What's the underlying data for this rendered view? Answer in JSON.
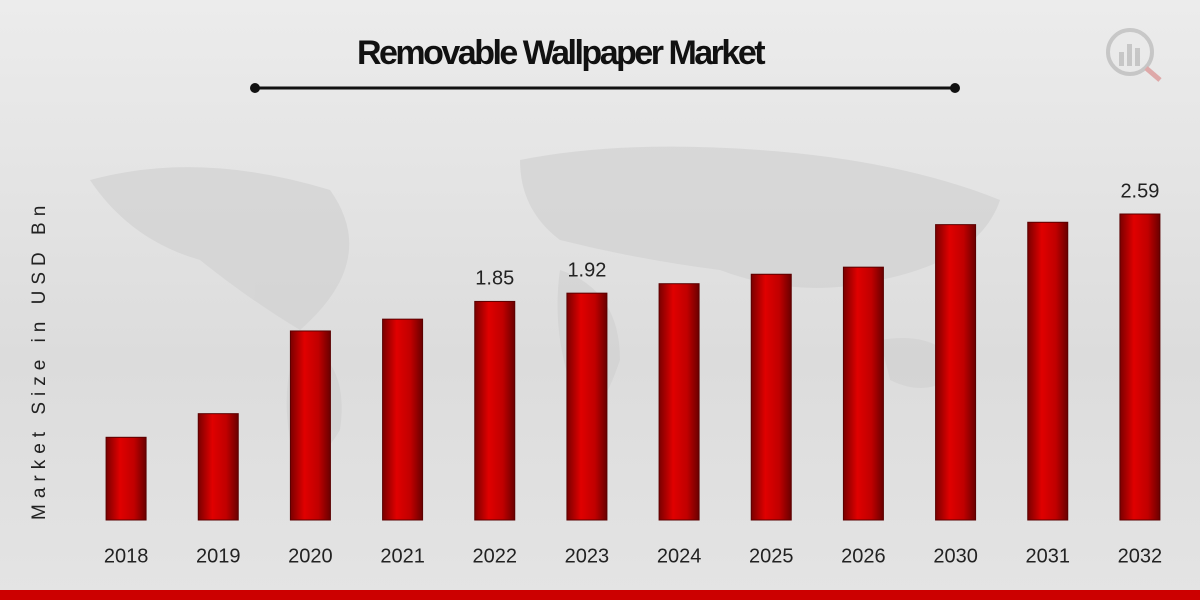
{
  "chart_data": {
    "type": "bar",
    "title": "Removable Wallpaper Market",
    "y_label": "Market Size in USD Bn",
    "categories": [
      "2018",
      "2019",
      "2020",
      "2021",
      "2022",
      "2023",
      "2024",
      "2025",
      "2026",
      "2030",
      "2031",
      "2032"
    ],
    "values": [
      0.7,
      0.9,
      1.6,
      1.7,
      1.85,
      1.92,
      2.0,
      2.08,
      2.14,
      2.5,
      2.52,
      2.59
    ],
    "value_labels": [
      null,
      null,
      null,
      null,
      "1.85",
      "1.92",
      null,
      null,
      null,
      null,
      null,
      "2.59"
    ],
    "color": "#d10000"
  }
}
